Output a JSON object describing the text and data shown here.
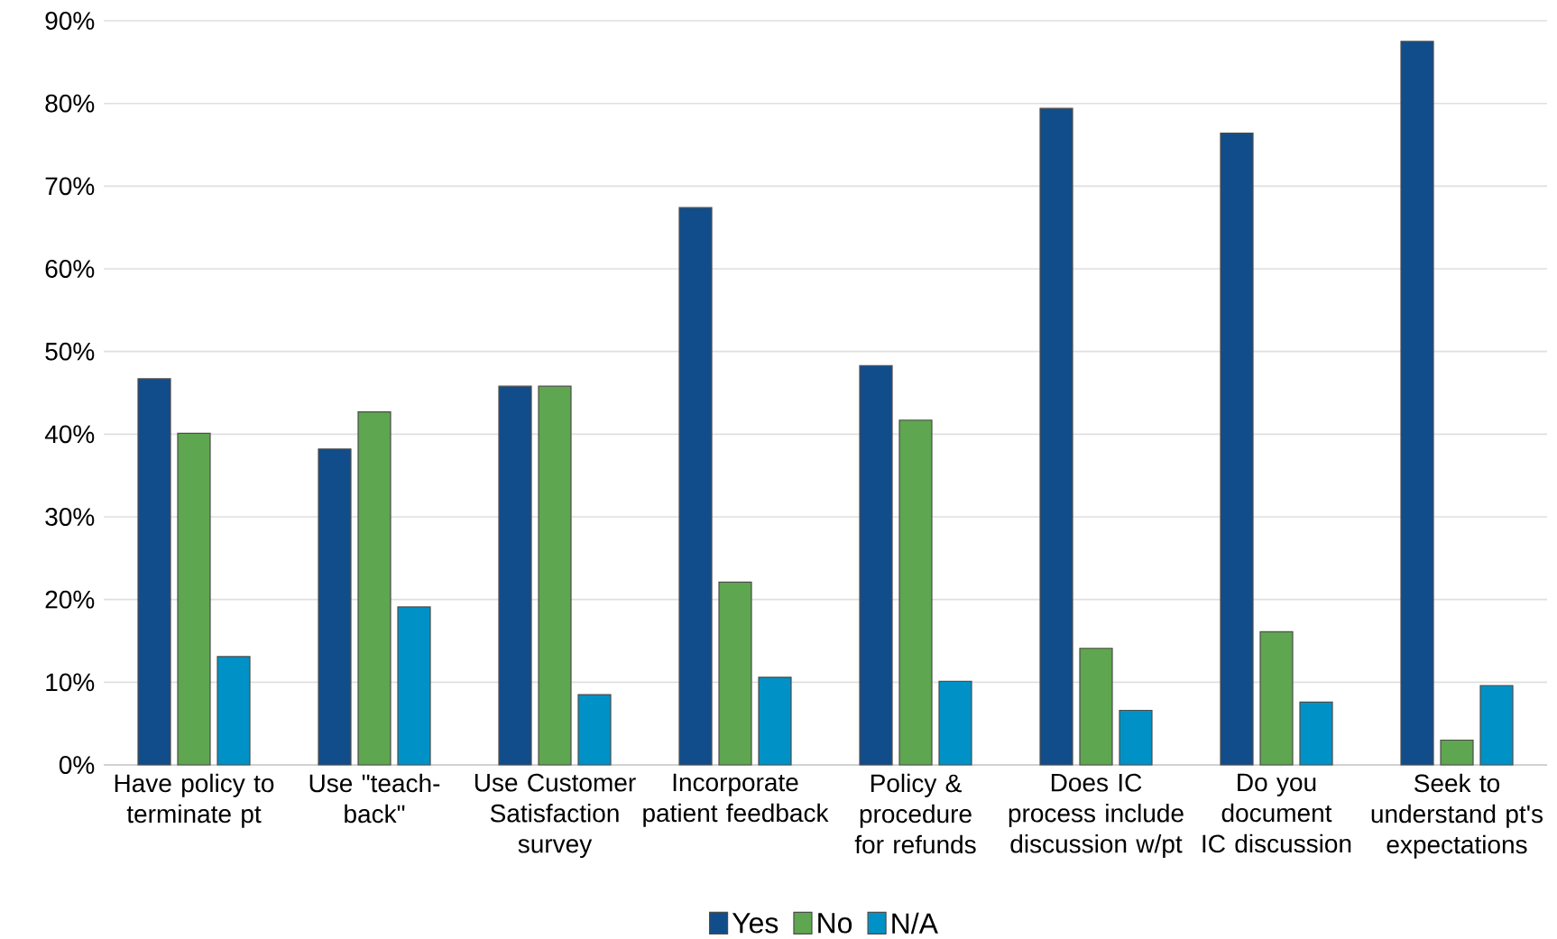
{
  "chart_data": {
    "type": "bar",
    "categories": [
      "Have policy to terminate pt",
      "Use \"teach-back\"",
      "Use Customer Satisfaction survey",
      "Incorporate patient feedback",
      "Policy & procedure for refunds",
      "Does IC process include discussion w/pt",
      "Do you document IC discussion",
      "Seek to understand pt's expectations"
    ],
    "series": [
      {
        "name": "Yes",
        "color": "#114d8a",
        "values": [
          46.7,
          38.2,
          45.8,
          67.4,
          48.3,
          79.4,
          76.4,
          87.5
        ]
      },
      {
        "name": "No",
        "color": "#5ea64f",
        "values": [
          40.1,
          42.7,
          45.8,
          22.1,
          41.7,
          14.1,
          16.1,
          3.0
        ]
      },
      {
        "name": "N/A",
        "color": "#0092c6",
        "values": [
          13.1,
          19.1,
          8.5,
          10.6,
          10.1,
          6.6,
          7.6,
          9.6
        ]
      }
    ],
    "ylim": [
      0,
      90
    ],
    "yticks": [
      {
        "value": 0,
        "label": "0%"
      },
      {
        "value": 10,
        "label": "10%"
      },
      {
        "value": 20,
        "label": "20%"
      },
      {
        "value": 30,
        "label": "30%"
      },
      {
        "value": 40,
        "label": "40%"
      },
      {
        "value": 50,
        "label": "50%"
      },
      {
        "value": 60,
        "label": "60%"
      },
      {
        "value": 70,
        "label": "70%"
      },
      {
        "value": 80,
        "label": "80%"
      },
      {
        "value": 90,
        "label": "90%"
      }
    ],
    "grid": "y",
    "legend": "bottom"
  }
}
